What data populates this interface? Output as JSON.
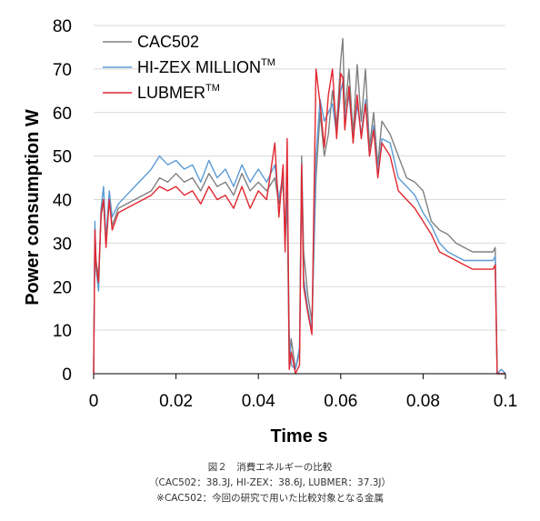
{
  "chart_data": {
    "type": "line",
    "title": "",
    "xlabel": "Time s",
    "ylabel": "Power consumption W",
    "xlim": [
      0,
      0.1
    ],
    "ylim": [
      0,
      80
    ],
    "xticks": [
      {
        "value": 0,
        "label": "0"
      },
      {
        "value": 0.02,
        "label": "0.02"
      },
      {
        "value": 0.04,
        "label": "0.04"
      },
      {
        "value": 0.06,
        "label": "0.06"
      },
      {
        "value": 0.08,
        "label": "0.08"
      },
      {
        "value": 0.1,
        "label": "0.1"
      }
    ],
    "yticks": [
      {
        "value": 0,
        "label": "0"
      },
      {
        "value": 10,
        "label": "10"
      },
      {
        "value": 20,
        "label": "20"
      },
      {
        "value": 30,
        "label": "30"
      },
      {
        "value": 40,
        "label": "40"
      },
      {
        "value": 50,
        "label": "50"
      },
      {
        "value": 60,
        "label": "60"
      },
      {
        "value": 70,
        "label": "70"
      },
      {
        "value": 80,
        "label": "80"
      }
    ],
    "grid": "horizontal",
    "legend_position": "top-left",
    "series": [
      {
        "name": "CAC502",
        "superscript": "",
        "color": "#808080",
        "x": [
          0,
          0.0003,
          0.0006,
          0.0012,
          0.0018,
          0.0024,
          0.003,
          0.0038,
          0.0045,
          0.006,
          0.008,
          0.01,
          0.012,
          0.014,
          0.016,
          0.018,
          0.02,
          0.022,
          0.024,
          0.026,
          0.028,
          0.03,
          0.032,
          0.034,
          0.036,
          0.038,
          0.04,
          0.042,
          0.044,
          0.045,
          0.046,
          0.0465,
          0.047,
          0.0475,
          0.048,
          0.049,
          0.05,
          0.0505,
          0.051,
          0.052,
          0.053,
          0.054,
          0.055,
          0.056,
          0.057,
          0.058,
          0.059,
          0.06,
          0.0605,
          0.061,
          0.062,
          0.063,
          0.064,
          0.065,
          0.066,
          0.067,
          0.068,
          0.069,
          0.07,
          0.072,
          0.074,
          0.076,
          0.078,
          0.08,
          0.082,
          0.084,
          0.086,
          0.088,
          0.09,
          0.092,
          0.094,
          0.095,
          0.096,
          0.097,
          0.0975,
          0.098,
          0.099,
          0.1
        ],
        "y": [
          0,
          33,
          26,
          22,
          36,
          40,
          30,
          40,
          34,
          38,
          39,
          40,
          41,
          42,
          45,
          44,
          46,
          44,
          45,
          42,
          46,
          43,
          44,
          41,
          46,
          42,
          44,
          42,
          45,
          39,
          44,
          30,
          40,
          1,
          8,
          1,
          5,
          50,
          28,
          18,
          12,
          45,
          60,
          50,
          55,
          65,
          57,
          72,
          77,
          60,
          70,
          55,
          71,
          58,
          70,
          52,
          60,
          48,
          58,
          55,
          50,
          45,
          44,
          42,
          35,
          33,
          32,
          30,
          29,
          28,
          28,
          28,
          28,
          28,
          29,
          0,
          1,
          0
        ]
      },
      {
        "name": "HI-ZEX MILLION",
        "superscript": "TM",
        "color": "#5b9bd5",
        "x": [
          0,
          0.0003,
          0.0006,
          0.0012,
          0.0018,
          0.0024,
          0.003,
          0.0038,
          0.0045,
          0.006,
          0.008,
          0.01,
          0.012,
          0.014,
          0.016,
          0.018,
          0.02,
          0.022,
          0.024,
          0.026,
          0.028,
          0.03,
          0.032,
          0.034,
          0.036,
          0.038,
          0.04,
          0.042,
          0.044,
          0.045,
          0.046,
          0.0465,
          0.047,
          0.0475,
          0.048,
          0.049,
          0.05,
          0.0505,
          0.051,
          0.052,
          0.053,
          0.054,
          0.055,
          0.056,
          0.057,
          0.058,
          0.059,
          0.06,
          0.0605,
          0.061,
          0.062,
          0.063,
          0.064,
          0.065,
          0.066,
          0.067,
          0.068,
          0.069,
          0.07,
          0.072,
          0.074,
          0.076,
          0.078,
          0.08,
          0.082,
          0.084,
          0.086,
          0.088,
          0.09,
          0.092,
          0.094,
          0.095,
          0.096,
          0.097,
          0.0975,
          0.098,
          0.099,
          0.1
        ],
        "y": [
          0,
          35,
          24,
          19,
          38,
          43,
          31,
          42,
          36,
          39,
          41,
          43,
          45,
          47,
          50,
          48,
          49,
          47,
          48,
          44,
          49,
          45,
          47,
          43,
          48,
          44,
          47,
          44,
          48,
          40,
          46,
          31,
          42,
          9,
          2,
          1,
          6,
          48,
          22,
          15,
          10,
          50,
          63,
          58,
          60,
          62,
          55,
          65,
          67,
          58,
          64,
          54,
          62,
          55,
          63,
          50,
          57,
          46,
          54,
          53,
          45,
          43,
          41,
          37,
          34,
          30,
          28,
          27,
          26,
          26,
          26,
          26,
          26,
          26,
          27,
          0,
          1,
          0
        ]
      },
      {
        "name": "LUBMER",
        "superscript": "TM",
        "color": "#e0272f",
        "x": [
          0,
          0.0003,
          0.0006,
          0.0012,
          0.0018,
          0.0024,
          0.003,
          0.0038,
          0.0045,
          0.006,
          0.008,
          0.01,
          0.012,
          0.014,
          0.016,
          0.018,
          0.02,
          0.022,
          0.024,
          0.026,
          0.028,
          0.03,
          0.032,
          0.034,
          0.036,
          0.038,
          0.04,
          0.042,
          0.044,
          0.045,
          0.046,
          0.0465,
          0.047,
          0.0475,
          0.048,
          0.049,
          0.05,
          0.0505,
          0.051,
          0.052,
          0.053,
          0.054,
          0.055,
          0.056,
          0.057,
          0.058,
          0.059,
          0.06,
          0.0605,
          0.061,
          0.062,
          0.063,
          0.064,
          0.065,
          0.066,
          0.067,
          0.068,
          0.069,
          0.07,
          0.072,
          0.074,
          0.076,
          0.078,
          0.08,
          0.082,
          0.084,
          0.086,
          0.088,
          0.09,
          0.092,
          0.094,
          0.095,
          0.096,
          0.097,
          0.0975,
          0.098,
          0.099,
          0.1
        ],
        "y": [
          0,
          33,
          25,
          21,
          37,
          40,
          29,
          40,
          33,
          37,
          38,
          39,
          40,
          41,
          43,
          42,
          43,
          41,
          42,
          39,
          43,
          40,
          41,
          38,
          43,
          38,
          42,
          40,
          53,
          36,
          48,
          28,
          54,
          1,
          5,
          0,
          2,
          48,
          20,
          14,
          9,
          70,
          62,
          52,
          64,
          70,
          54,
          69,
          68,
          56,
          66,
          53,
          64,
          54,
          62,
          50,
          56,
          45,
          53,
          50,
          42,
          40,
          38,
          35,
          32,
          28,
          27,
          26,
          25,
          24,
          24,
          24,
          24,
          24,
          25,
          0,
          0,
          0
        ]
      }
    ]
  },
  "caption": {
    "line1": "図２　消費エネルギーの比較",
    "line2": "（CAC502：38.3J, HI-ZEX：38.6J, LUBMER：37.3J）",
    "line3": "※CAC502：今回の研究で用いた比較対象となる金属"
  }
}
